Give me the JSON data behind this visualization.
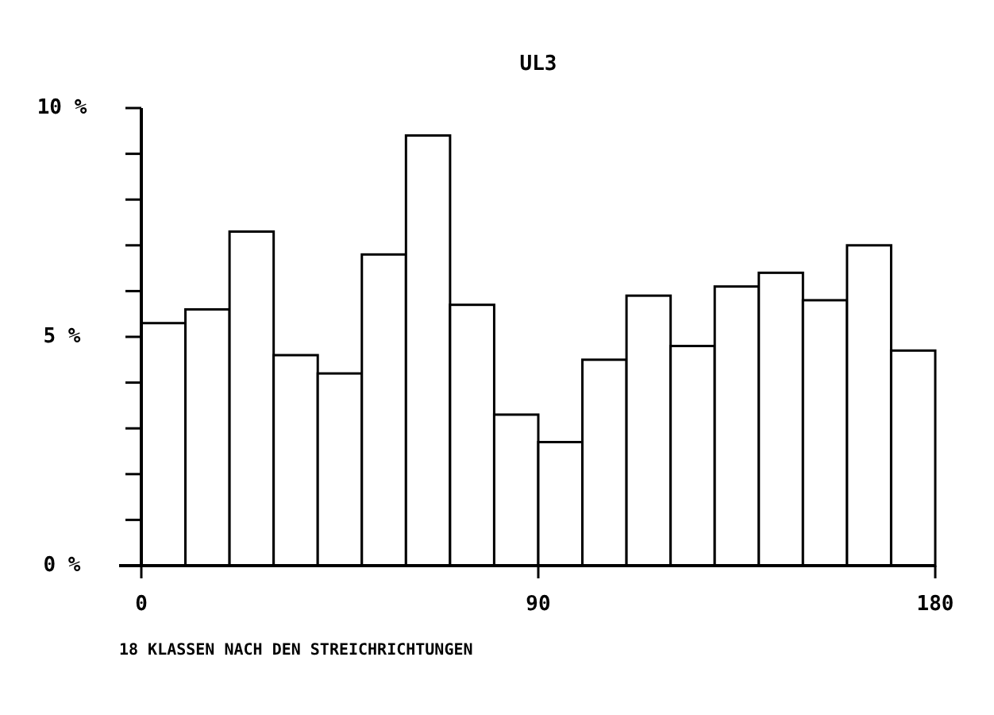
{
  "chart_data": {
    "type": "histogram",
    "title": "UL3",
    "xlabel": "18 KLASSEN NACH DEN STREICHRICHTUNGEN",
    "bins": [
      0,
      10,
      20,
      30,
      40,
      50,
      60,
      70,
      80,
      90,
      100,
      110,
      120,
      130,
      140,
      150,
      160,
      170,
      180
    ],
    "values": [
      5.3,
      5.6,
      7.3,
      4.6,
      4.2,
      6.8,
      9.4,
      5.7,
      3.3,
      2.7,
      4.5,
      5.9,
      4.8,
      6.1,
      6.4,
      5.8,
      7.0,
      4.7
    ],
    "color": "#ffffff",
    "xlim": [
      0,
      180
    ],
    "xticks": [
      0,
      90,
      180
    ],
    "ylim": [
      0,
      10
    ],
    "yticks": [
      {
        "value": 0,
        "label": "0 %"
      },
      {
        "value": 1,
        "label": null
      },
      {
        "value": 2,
        "label": null
      },
      {
        "value": 3,
        "label": null
      },
      {
        "value": 4,
        "label": null
      },
      {
        "value": 5,
        "label": "5 %"
      },
      {
        "value": 6,
        "label": null
      },
      {
        "value": 7,
        "label": null
      },
      {
        "value": 8,
        "label": null
      },
      {
        "value": 9,
        "label": null
      },
      {
        "value": 10,
        "label": "10 %"
      }
    ],
    "grid": false
  }
}
